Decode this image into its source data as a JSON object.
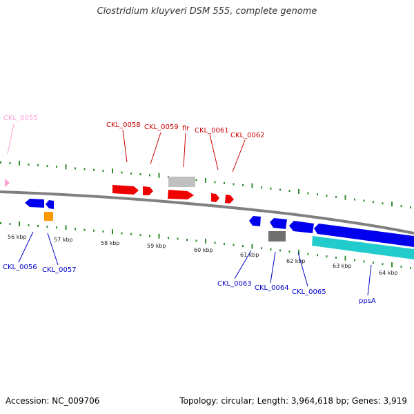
{
  "title": "Clostridium kluyveri DSM 555, complete genome",
  "footer": {
    "accession": "Accession: NC_009706",
    "summary": "Topology: circular; Length: 3,964,618 bp; Genes: 3,919"
  },
  "colors": {
    "backbone": "#808080",
    "tick": "#2e8b2e",
    "forward_gene": "#ee0000",
    "reverse_gene": "#0000ee",
    "rna": "#c0c0c0",
    "rna_rev": "#707070",
    "orange": "#ff9900",
    "cyan": "#22cccc",
    "pink": "#ff9ed4"
  },
  "scale_labels": [
    "56 kbp",
    "57 kbp",
    "58 kbp",
    "59 kbp",
    "60 kbp",
    "61 kbp",
    "62 kbp",
    "63 kbp",
    "64 kbp"
  ],
  "gene_labels": {
    "top": [
      "CKL_0055",
      "CKL_0058",
      "CKL_0059",
      "flr",
      "CKL_0061",
      "CKL_0062"
    ],
    "bottom": [
      "CKL_0056",
      "CKL_0057",
      "CKL_0063",
      "CKL_0064",
      "CKL_0065",
      "ppsA"
    ]
  }
}
